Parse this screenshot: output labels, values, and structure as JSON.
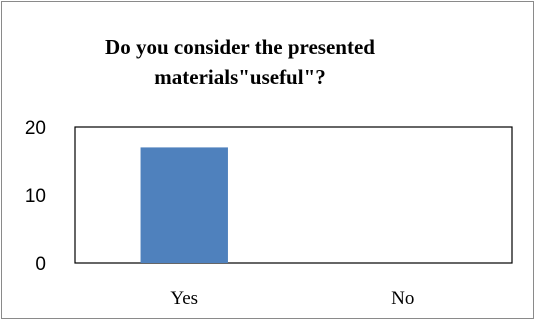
{
  "chart_data": {
    "type": "bar",
    "title_lines": [
      "Do you consider the presented",
      "materials\"useful\"?"
    ],
    "categories": [
      "Yes",
      "No"
    ],
    "values": [
      17,
      0
    ],
    "ylim": [
      0,
      20
    ],
    "yticks": [
      0,
      10,
      20
    ],
    "bar_color": "#4f81bd",
    "grid": false,
    "legend": "none"
  }
}
